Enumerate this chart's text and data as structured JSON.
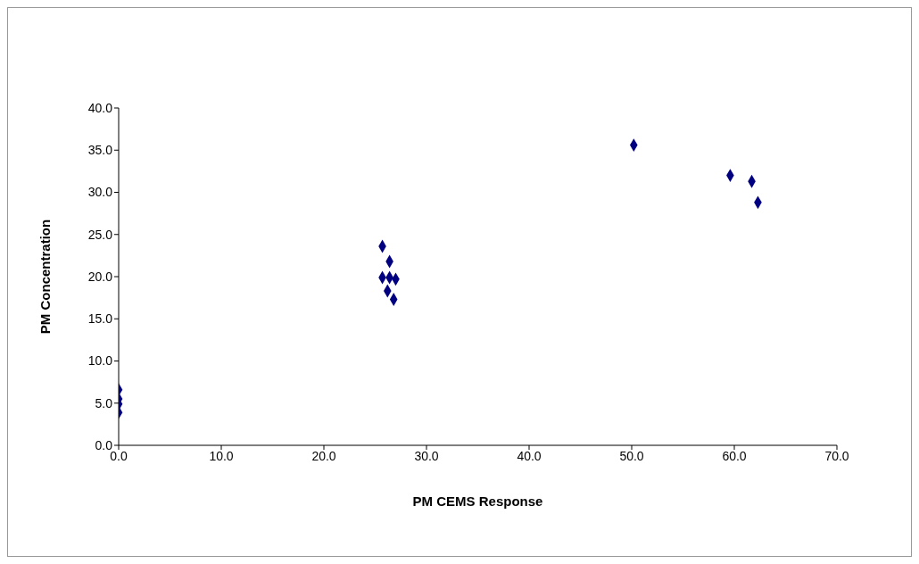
{
  "chart_data": {
    "type": "scatter",
    "xlabel": "PM CEMS Response",
    "ylabel": "PM Concentration",
    "x": [
      0,
      0,
      0,
      0,
      25.7,
      26.4,
      25.7,
      26.4,
      27.0,
      26.2,
      26.8,
      50.2,
      59.6,
      61.7,
      62.3
    ],
    "values": [
      6.6,
      5.5,
      4.9,
      3.9,
      23.6,
      21.8,
      19.9,
      19.9,
      19.7,
      18.3,
      17.3,
      35.6,
      32.0,
      31.3,
      28.8
    ],
    "color": "#000080",
    "marker": "diamond",
    "grid": false,
    "legend": false,
    "xlim": [
      0,
      70
    ],
    "xticks": [
      {
        "value": 0,
        "label": "0.0"
      },
      {
        "value": 10,
        "label": "10.0"
      },
      {
        "value": 20,
        "label": "20.0"
      },
      {
        "value": 30,
        "label": "30.0"
      },
      {
        "value": 40,
        "label": "40.0"
      },
      {
        "value": 50,
        "label": "50.0"
      },
      {
        "value": 60,
        "label": "60.0"
      },
      {
        "value": 70,
        "label": "70.0"
      }
    ],
    "ylim": [
      0,
      40
    ],
    "yticks": [
      {
        "value": 0,
        "label": "0.0"
      },
      {
        "value": 5,
        "label": "5.0"
      },
      {
        "value": 10,
        "label": "10.0"
      },
      {
        "value": 15,
        "label": "15.0"
      },
      {
        "value": 20,
        "label": "20.0"
      },
      {
        "value": 25,
        "label": "25.0"
      },
      {
        "value": 30,
        "label": "30.0"
      },
      {
        "value": 35,
        "label": "35.0"
      },
      {
        "value": 40,
        "label": "40.0"
      }
    ]
  }
}
